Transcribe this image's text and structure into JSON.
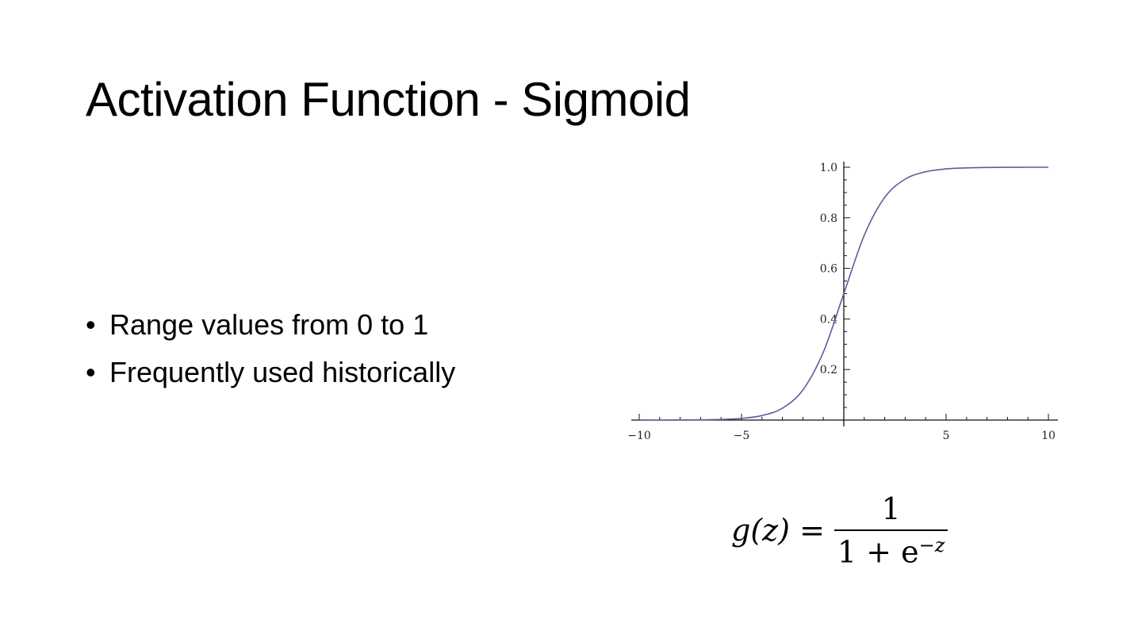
{
  "slide": {
    "title": "Activation Function - Sigmoid",
    "bullets": [
      "Range values from 0 to 1",
      "Frequently used historically"
    ],
    "formula": {
      "lhs": "g(z) =",
      "numerator": "1",
      "denominator_base": "1 + e",
      "denominator_exponent": "−z"
    }
  },
  "chart_data": {
    "type": "line",
    "title": "",
    "xlabel": "",
    "ylabel": "",
    "xlim": [
      -10,
      10
    ],
    "ylim": [
      0,
      1
    ],
    "x_ticks": [
      "−10",
      "−5",
      "5",
      "10"
    ],
    "x_tick_values": [
      -10,
      -5,
      5,
      10
    ],
    "y_ticks": [
      "0.2",
      "0.4",
      "0.6",
      "0.8",
      "1.0"
    ],
    "y_tick_values": [
      0.2,
      0.4,
      0.6,
      0.8,
      1.0
    ],
    "grid": false,
    "line_color": "#5c5c9c",
    "series": [
      {
        "x": [
          -10,
          -9,
          -8,
          -7,
          -6,
          -5,
          -4,
          -3,
          -2,
          -1,
          0,
          1,
          2,
          3,
          4,
          5,
          6,
          7,
          8,
          9,
          10
        ],
        "y": [
          5e-05,
          0.0001,
          0.0003,
          0.0009,
          0.0025,
          0.0067,
          0.018,
          0.047,
          0.119,
          0.269,
          0.5,
          0.731,
          0.881,
          0.953,
          0.982,
          0.9933,
          0.9975,
          0.9991,
          0.9997,
          0.9999,
          0.99995
        ]
      }
    ]
  }
}
